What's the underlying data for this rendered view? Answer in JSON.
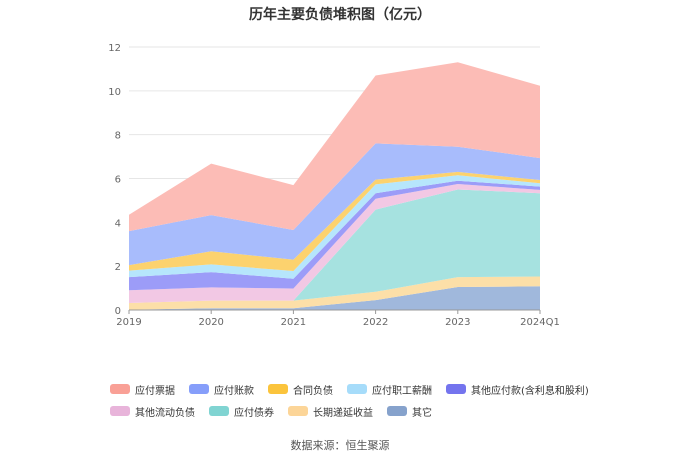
{
  "chart_data": {
    "type": "area",
    "title": "历年主要负债堆积图（亿元）",
    "categories": [
      "2019",
      "2020",
      "2021",
      "2022",
      "2023",
      "2024Q1"
    ],
    "stacked": true,
    "ylim": [
      0,
      12
    ],
    "yticks": [
      0,
      2,
      4,
      6,
      8,
      10,
      12
    ],
    "grid": true,
    "legend_position": "bottom",
    "series": [
      {
        "name": "其它",
        "color": "#a0b8dc",
        "values": [
          0.02,
          0.08,
          0.08,
          0.45,
          1.05,
          1.08
        ]
      },
      {
        "name": "长期递延收益",
        "color": "#fcdfa8",
        "values": [
          0.3,
          0.35,
          0.35,
          0.38,
          0.45,
          0.45
        ]
      },
      {
        "name": "应付债券",
        "color": "#a6e2e0",
        "values": [
          0.0,
          0.0,
          0.0,
          3.75,
          4.0,
          3.8
        ]
      },
      {
        "name": "其他流动负债",
        "color": "#f2c8e4",
        "values": [
          0.58,
          0.6,
          0.55,
          0.5,
          0.25,
          0.15
        ]
      },
      {
        "name": "其他应付款(含利息和股利)",
        "color": "#9c9cf8",
        "values": [
          0.6,
          0.7,
          0.45,
          0.25,
          0.15,
          0.15
        ]
      },
      {
        "name": "应付职工薪酬",
        "color": "#b6e6fc",
        "values": [
          0.3,
          0.35,
          0.35,
          0.4,
          0.25,
          0.15
        ]
      },
      {
        "name": "合同负债",
        "color": "#fcd26e",
        "values": [
          0.25,
          0.6,
          0.52,
          0.22,
          0.15,
          0.15
        ]
      },
      {
        "name": "应付账款",
        "color": "#a8bcfc",
        "values": [
          1.55,
          1.65,
          1.35,
          1.65,
          1.15,
          1.0
        ]
      },
      {
        "name": "应付票据",
        "color": "#fcbcb6",
        "values": [
          0.75,
          2.35,
          2.05,
          3.1,
          3.85,
          3.3
        ]
      }
    ]
  },
  "legend": {
    "rows": [
      [
        {
          "name": "应付票据",
          "color": "#f9a096"
        },
        {
          "name": "应付账款",
          "color": "#869efa"
        },
        {
          "name": "合同负债",
          "color": "#fbc43c"
        },
        {
          "name": "应付职工薪酬",
          "color": "#a6dcfa"
        },
        {
          "name": "其他应付款(含利息和股利)",
          "color": "#7474ee"
        }
      ],
      [
        {
          "name": "其他流动负债",
          "color": "#e8b4da"
        },
        {
          "name": "应付债券",
          "color": "#80d4d2"
        },
        {
          "name": "长期递延收益",
          "color": "#fcd598"
        },
        {
          "name": "其它",
          "color": "#86a2cc"
        }
      ]
    ]
  },
  "source": "数据来源：恒生聚源"
}
